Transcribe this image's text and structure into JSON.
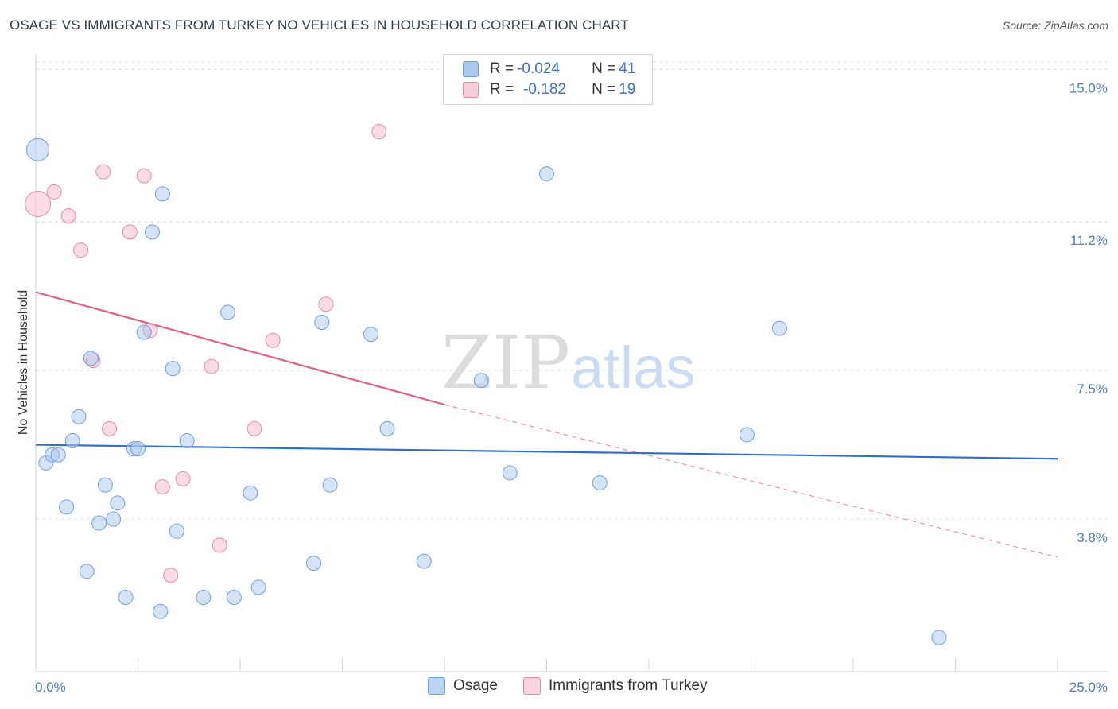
{
  "header": {
    "title": "OSAGE VS IMMIGRANTS FROM TURKEY NO VEHICLES IN HOUSEHOLD CORRELATION CHART",
    "source": "Source: ZipAtlas.com"
  },
  "watermark": {
    "zip": "ZIP",
    "atlas": "atlas"
  },
  "legend": {
    "rows": [
      {
        "r_label": "R = ",
        "r_value": "-0.024",
        "n_label": "N = ",
        "n_value": "41",
        "color": "#a9c8f0"
      },
      {
        "r_label": "R = ",
        "r_value": "-0.182",
        "n_label": "N = ",
        "n_value": "19",
        "color": "#f7b8cb"
      }
    ]
  },
  "bottom_legend": {
    "osage": "Osage",
    "turkey": "Immigrants from Turkey"
  },
  "chart_data": {
    "type": "scatter",
    "title": "OSAGE VS IMMIGRANTS FROM TURKEY NO VEHICLES IN HOUSEHOLD CORRELATION CHART",
    "ylabel": "No Vehicles in Household",
    "xlabel": "",
    "xlim": [
      0,
      25
    ],
    "ylim": [
      0,
      15.5
    ],
    "x_tick_labels": [
      "0.0%",
      "25.0%"
    ],
    "y_ticks": [
      3.8,
      7.5,
      11.2,
      15.0
    ],
    "y_tick_labels": [
      "3.8%",
      "7.5%",
      "11.2%",
      "15.0%"
    ],
    "grid": true,
    "legend_position": "top-center",
    "series": [
      {
        "name": "Osage",
        "color": "#a9c8f0",
        "stroke": "#6c9fde",
        "line_color": "#2f6fcc",
        "trend": {
          "x": [
            0,
            25
          ],
          "y": [
            5.65,
            5.3
          ]
        },
        "points": [
          [
            0.05,
            13.0,
            14
          ],
          [
            0.25,
            5.2,
            9
          ],
          [
            0.4,
            5.4,
            9
          ],
          [
            0.55,
            5.4,
            9
          ],
          [
            0.75,
            4.1,
            9
          ],
          [
            0.9,
            5.75,
            9
          ],
          [
            1.05,
            6.35,
            9
          ],
          [
            1.25,
            2.5,
            9
          ],
          [
            1.35,
            7.8,
            9
          ],
          [
            1.55,
            3.7,
            9
          ],
          [
            1.7,
            4.65,
            9
          ],
          [
            1.9,
            3.8,
            9
          ],
          [
            2.0,
            4.2,
            9
          ],
          [
            2.2,
            1.85,
            9
          ],
          [
            2.4,
            5.55,
            9
          ],
          [
            2.5,
            5.55,
            9
          ],
          [
            2.65,
            8.45,
            9
          ],
          [
            2.85,
            10.95,
            9
          ],
          [
            3.05,
            1.5,
            9
          ],
          [
            3.1,
            11.9,
            9
          ],
          [
            3.35,
            7.55,
            9
          ],
          [
            3.45,
            3.5,
            9
          ],
          [
            3.7,
            5.75,
            9
          ],
          [
            4.1,
            1.85,
            9
          ],
          [
            4.7,
            8.95,
            9
          ],
          [
            4.85,
            1.85,
            9
          ],
          [
            5.25,
            4.45,
            9
          ],
          [
            5.45,
            2.1,
            9
          ],
          [
            6.8,
            2.7,
            9
          ],
          [
            7.0,
            8.7,
            9
          ],
          [
            7.2,
            4.65,
            9
          ],
          [
            8.2,
            8.4,
            9
          ],
          [
            8.6,
            6.05,
            9
          ],
          [
            9.5,
            2.75,
            9
          ],
          [
            10.9,
            7.25,
            9
          ],
          [
            11.6,
            4.95,
            9
          ],
          [
            12.5,
            12.4,
            9
          ],
          [
            13.8,
            4.7,
            9
          ],
          [
            17.4,
            5.9,
            9
          ],
          [
            18.2,
            8.55,
            9
          ],
          [
            22.1,
            0.85,
            9
          ]
        ]
      },
      {
        "name": "Immigrants from Turkey",
        "color": "#f7b8cb",
        "stroke": "#e88aa8",
        "line_color": "#e0608a",
        "trend": {
          "x": [
            0,
            10
          ],
          "y": [
            9.45,
            6.65
          ]
        },
        "trend_dashed": {
          "x": [
            10,
            25
          ],
          "y": [
            6.65,
            2.85
          ]
        },
        "points": [
          [
            0.05,
            11.65,
            16
          ],
          [
            0.45,
            11.95,
            9
          ],
          [
            0.8,
            11.35,
            9
          ],
          [
            1.1,
            10.5,
            9
          ],
          [
            1.4,
            7.75,
            9
          ],
          [
            1.8,
            6.05,
            9
          ],
          [
            1.65,
            12.45,
            9
          ],
          [
            2.3,
            10.95,
            9
          ],
          [
            2.65,
            12.35,
            9
          ],
          [
            2.8,
            8.5,
            9
          ],
          [
            3.1,
            4.6,
            9
          ],
          [
            3.3,
            2.4,
            9
          ],
          [
            3.6,
            4.8,
            9
          ],
          [
            4.3,
            7.6,
            9
          ],
          [
            4.5,
            3.15,
            9
          ],
          [
            5.35,
            6.05,
            9
          ],
          [
            5.8,
            8.25,
            9
          ],
          [
            7.1,
            9.15,
            9
          ],
          [
            8.4,
            13.45,
            9
          ]
        ]
      }
    ]
  }
}
